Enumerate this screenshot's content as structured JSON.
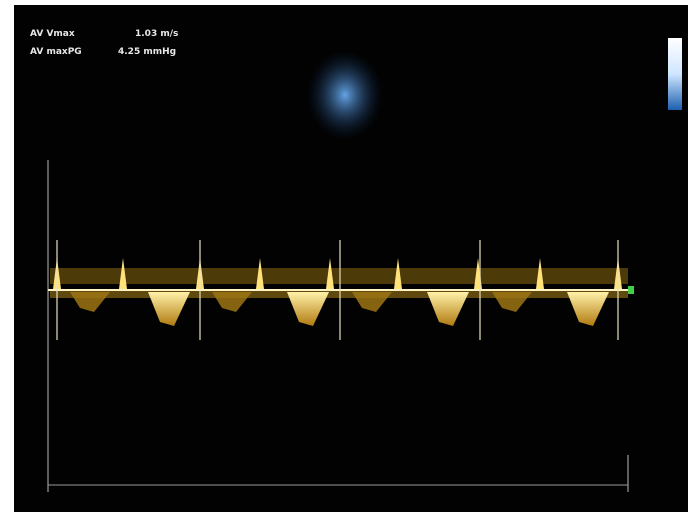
{
  "measurements": [
    {
      "label": "AV Vmax",
      "value": "1.03 m/s"
    },
    {
      "label": "AV maxPG",
      "value": "4.25 mmHg"
    }
  ]
}
